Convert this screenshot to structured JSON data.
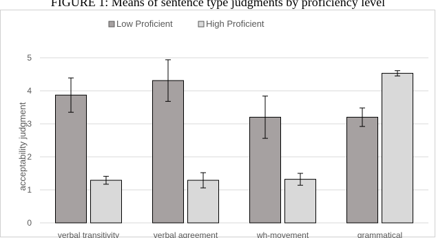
{
  "caption": "FIGURE 1: Means of sentence type judgments by proficiency level",
  "chart_data": {
    "type": "bar",
    "title": "",
    "xlabel": "",
    "ylabel": "acceptability judgment",
    "categories": [
      "verbal transitivity",
      "verbal agreement",
      "wh-movement",
      "grammatical"
    ],
    "series": [
      {
        "name": "Low Proficient",
        "color": "#a6a1a1",
        "values": [
          3.87,
          4.31,
          3.2,
          3.2
        ],
        "error": [
          0.52,
          0.63,
          0.64,
          0.28
        ]
      },
      {
        "name": "High Proficient",
        "color": "#d9d9d9",
        "values": [
          1.29,
          1.29,
          1.32,
          4.53
        ],
        "error": [
          0.12,
          0.23,
          0.18,
          0.08
        ]
      }
    ],
    "ylim": [
      0,
      5
    ],
    "yticks": [
      "0",
      "1",
      "2",
      "3",
      "4",
      "5"
    ],
    "grid": true,
    "legend": "top-left",
    "error_bars": true
  }
}
